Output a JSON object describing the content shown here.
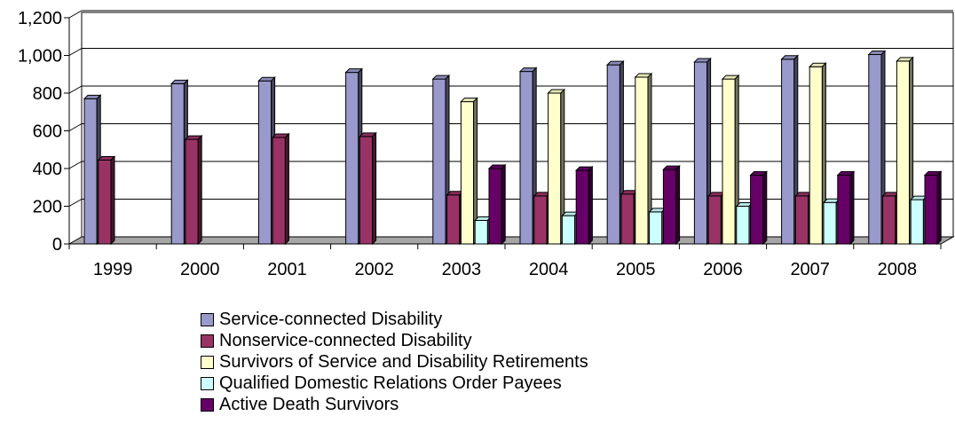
{
  "chart_data": {
    "type": "bar",
    "categories": [
      "1999",
      "2000",
      "2001",
      "2002",
      "2003",
      "2004",
      "2005",
      "2006",
      "2007",
      "2008"
    ],
    "ylim": [
      0,
      1200
    ],
    "yticks": [
      "0",
      "200",
      "400",
      "600",
      "800",
      "1,000",
      "1,200"
    ],
    "grid": true,
    "legend_position": "bottom",
    "series": [
      {
        "name": "Service-connected Disability",
        "color": "#9999cc",
        "values": [
          770,
          850,
          865,
          910,
          875,
          915,
          950,
          965,
          980,
          1005
        ]
      },
      {
        "name": "Nonservice-connected Disability",
        "color": "#993366",
        "values": [
          445,
          555,
          565,
          570,
          260,
          255,
          265,
          255,
          255,
          255
        ]
      },
      {
        "name": "Survivors of Service and Disability Retirements",
        "color": "#ffffcc",
        "values": [
          null,
          null,
          null,
          null,
          755,
          800,
          885,
          875,
          940,
          970
        ]
      },
      {
        "name": "Qualified Domestic Relations Order Payees",
        "color": "#ccffff",
        "values": [
          null,
          null,
          null,
          null,
          125,
          150,
          170,
          200,
          220,
          235
        ]
      },
      {
        "name": "Active Death Survivors",
        "color": "#660066",
        "values": [
          null,
          null,
          null,
          null,
          400,
          390,
          395,
          365,
          365,
          365
        ]
      }
    ]
  }
}
